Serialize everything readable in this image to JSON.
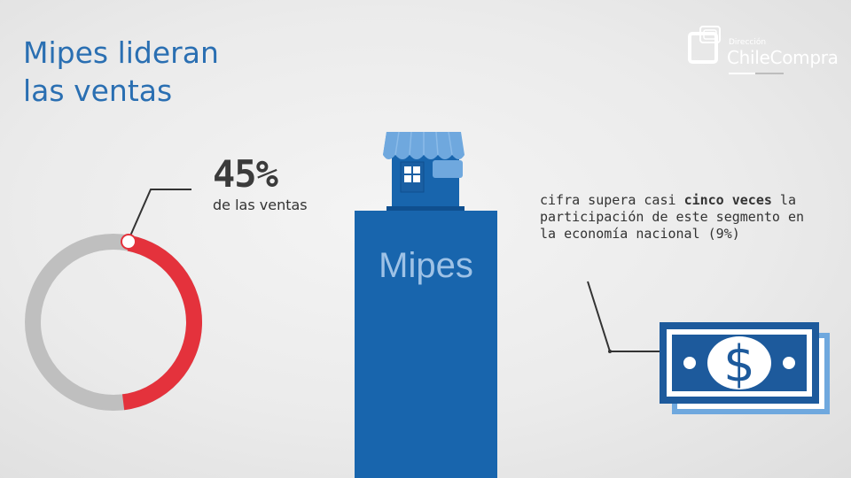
{
  "title_lines": [
    "Mipes lideran",
    "las ventas"
  ],
  "logo": {
    "small_text": "Dirección",
    "brand_text": "ChileCompra"
  },
  "highlight": {
    "percent_text": "45%",
    "percent_value": 45,
    "subtitle": "de las ventas"
  },
  "bar": {
    "label": "Mipes"
  },
  "description": {
    "prefix": "cifra supera casi ",
    "emphasis": "cinco veces",
    "suffix": " la participación de este segmento en la economía nacional (9%)"
  },
  "colors": {
    "title": "#2a6fb2",
    "donut_highlight": "#e4323c",
    "donut_rest": "#bfbfbf",
    "bar": "#1865ad",
    "bar_label": "#9ec2e6",
    "store_roof": "#6fa8de",
    "store_body": "#1865ad",
    "bill_outer": "#1d5a9c",
    "bill_inner": "#ffffff"
  },
  "icons": {
    "donut": "donut-chart-icon",
    "store": "store-icon",
    "money": "dollar-bill-icon",
    "logo": "chilecompra-logo-icon"
  }
}
